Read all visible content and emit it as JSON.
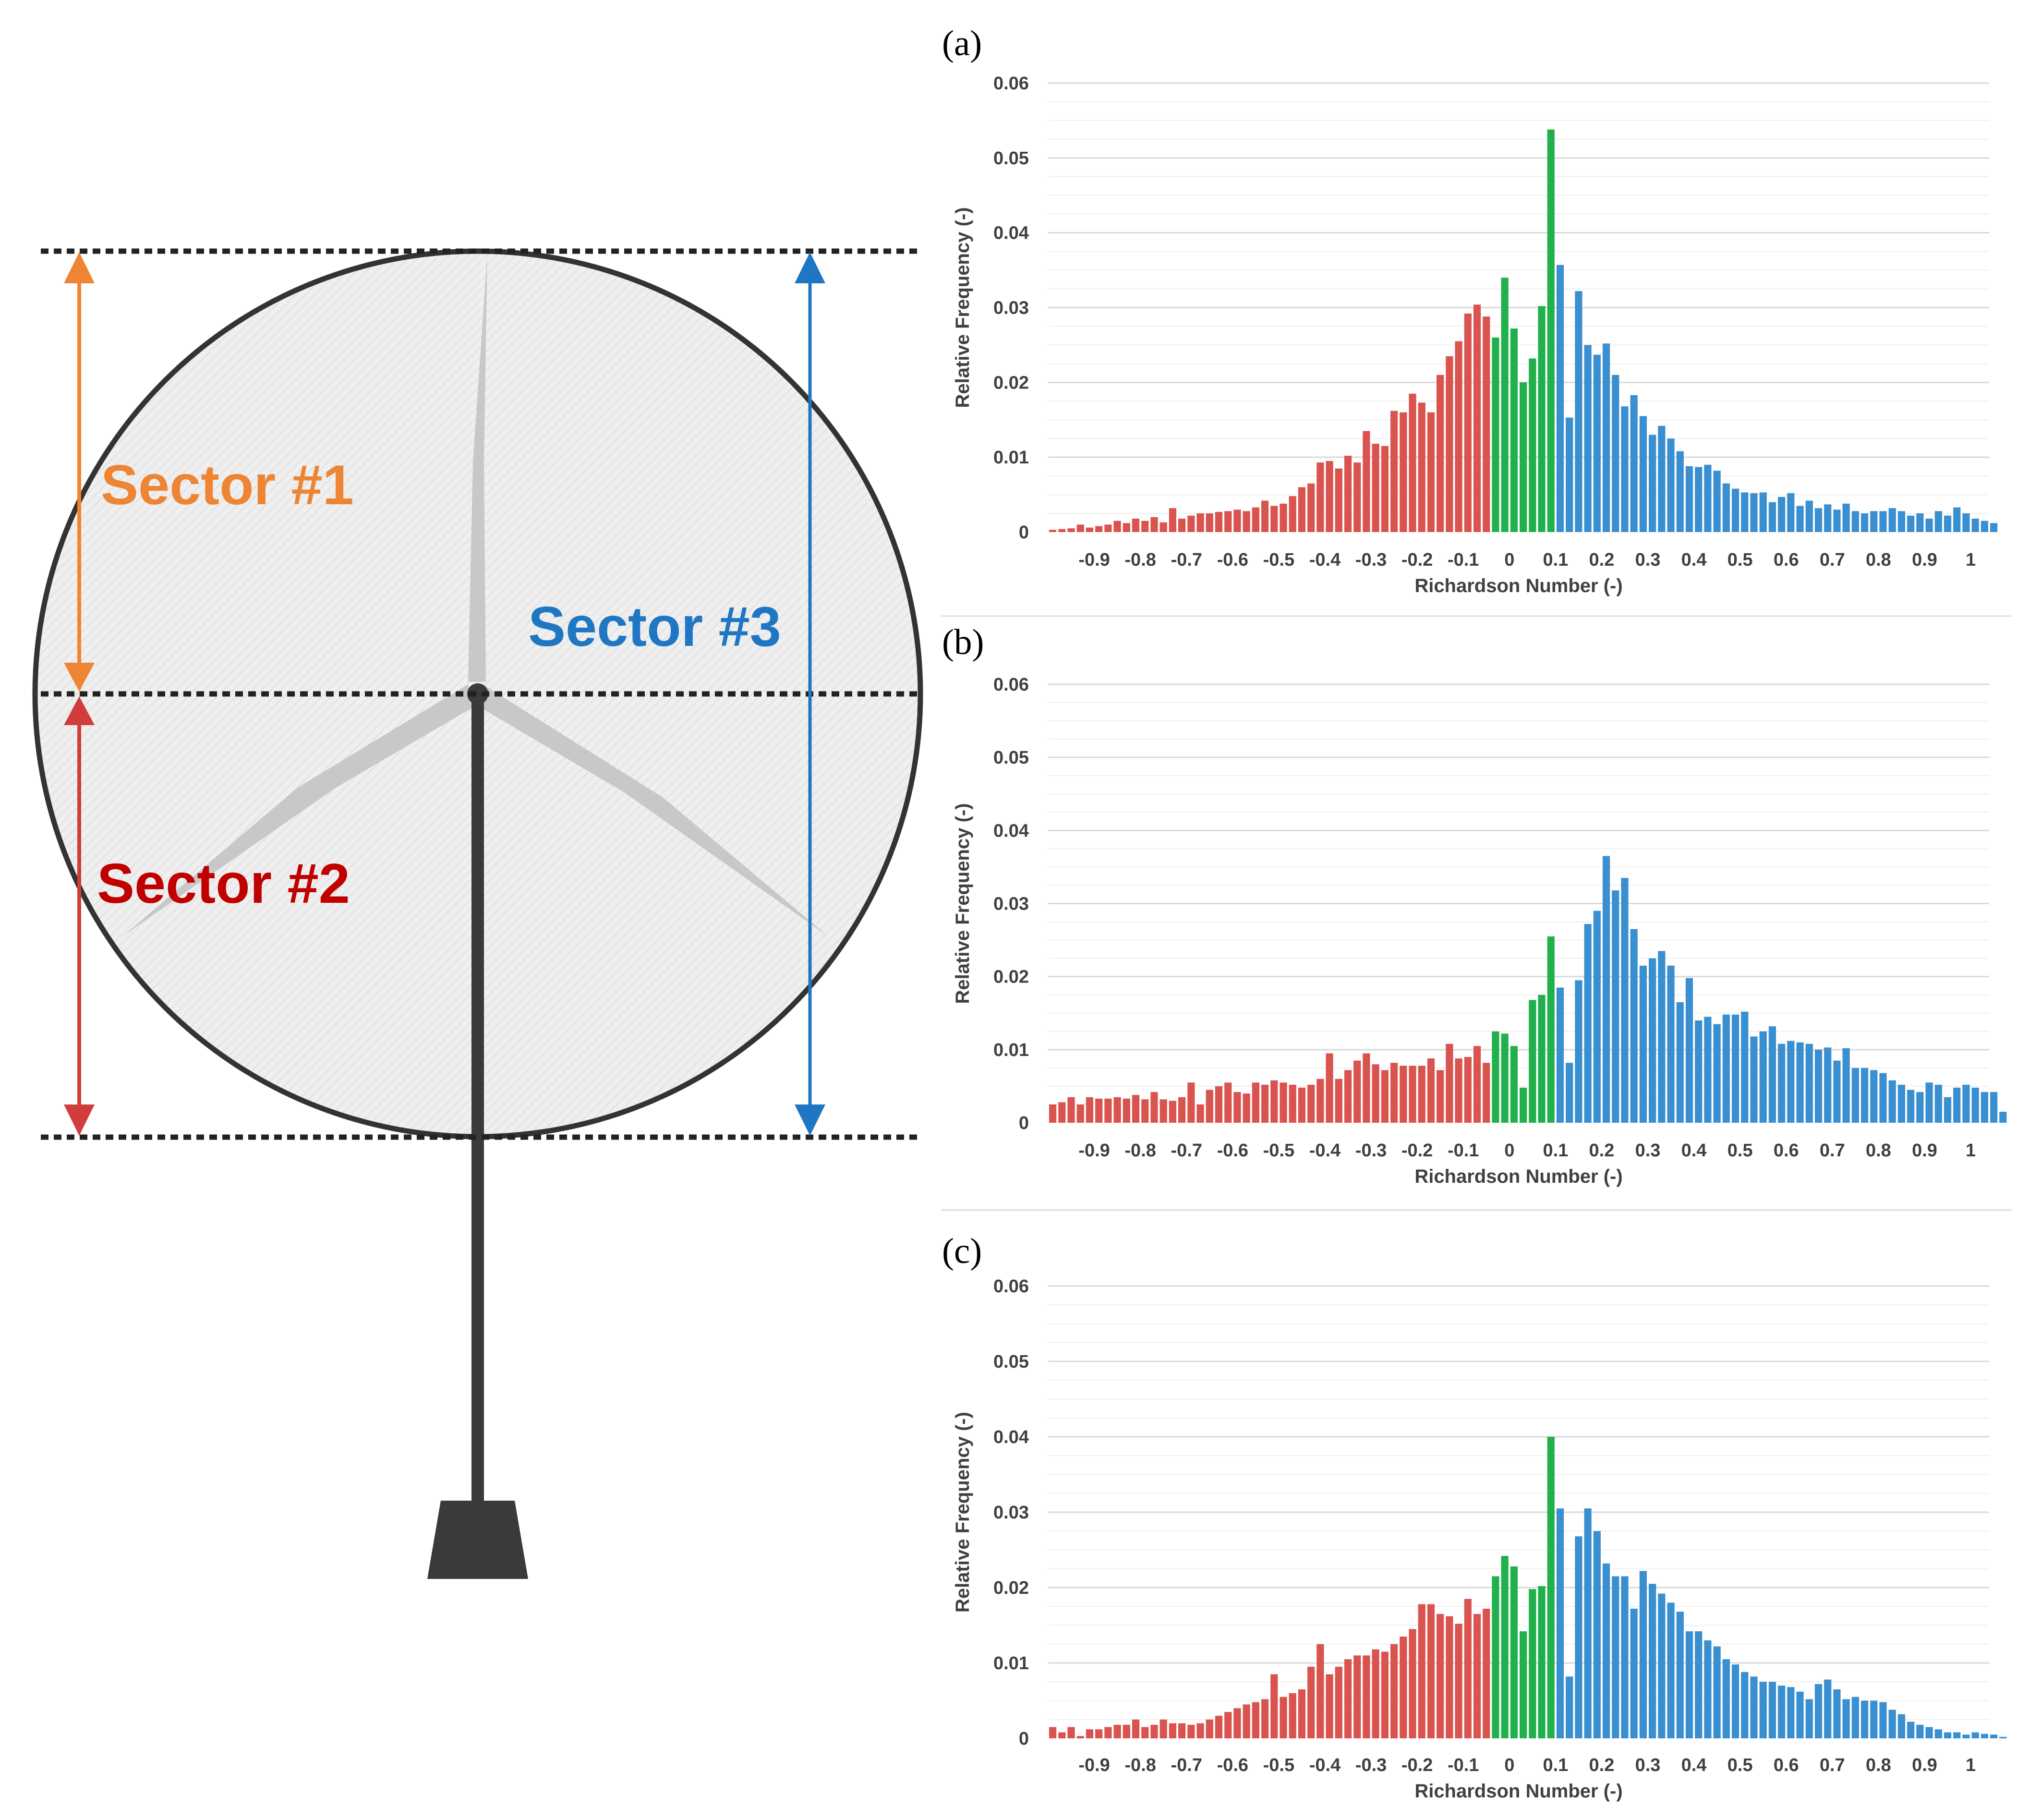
{
  "diagram": {
    "labels": [
      {
        "text": "Sector #1",
        "color": "#ED8534"
      },
      {
        "text": "Sector #2",
        "color": "#C00000"
      },
      {
        "text": "Sector #3",
        "color": "#1F77C4"
      }
    ],
    "colors": {
      "rotor_fill": "#EEEEEE",
      "rotor_stroke": "#333333",
      "blade": "#C8C8C8",
      "tower": "#3A3A3A",
      "dotted_line": "#222222",
      "arrow_sector1": "#ED8534",
      "arrow_sector2": "#D13C3C",
      "arrow_sector3": "#1F77C4"
    }
  },
  "chart_data": [
    {
      "type": "bar",
      "panel_label": "(a)",
      "xlabel": "Richardson Number (-)",
      "ylabel": "Relative Frequency (-)",
      "ylim": [
        0,
        0.06
      ],
      "yticks": [
        "0",
        "0.01",
        "0.02",
        "0.03",
        "0.04",
        "0.05",
        "0.06"
      ],
      "xticks": [
        "-0.9",
        "-0.8",
        "-0.7",
        "-0.6",
        "-0.5",
        "-0.4",
        "-0.3",
        "-0.2",
        "-0.1",
        "0",
        "0.1",
        "0.2",
        "0.3",
        "0.4",
        "0.5",
        "0.6",
        "0.7",
        "0.8",
        "0.9",
        "1"
      ],
      "grid": "horizontal",
      "bin_width": 0.02,
      "x_start": -0.99,
      "series": [
        {
          "color": "#D9534F",
          "values": [
            0.0003,
            0.0004,
            0.0005,
            0.001,
            0.0006,
            0.0008,
            0.001,
            0.0015,
            0.0012,
            0.0018,
            0.0015,
            0.002,
            0.0013,
            0.0032,
            0.0018,
            0.0022,
            0.0025,
            0.0025,
            0.0027,
            0.0028,
            0.003,
            0.0028,
            0.0033,
            0.0042,
            0.0035,
            0.0038,
            0.0048,
            0.006,
            0.0065,
            0.0093,
            0.0095,
            0.0085,
            0.0102,
            0.0093,
            0.0135,
            0.0118,
            0.0115,
            0.0162,
            0.016,
            0.0185,
            0.0173,
            0.016,
            0.021,
            0.0235,
            0.0255,
            0.0292,
            0.0304,
            0.0288
          ]
        },
        {
          "color": "#21B04B",
          "values": [
            0.026,
            0.034,
            0.0272,
            0.02,
            0.0232,
            0.0302,
            0.0538
          ]
        },
        {
          "color": "#3A8FD0",
          "values": [
            0.0357,
            0.0153,
            0.0322,
            0.025,
            0.0237,
            0.0252,
            0.021,
            0.0168,
            0.0183,
            0.0155,
            0.013,
            0.0142,
            0.0125,
            0.0108,
            0.0088,
            0.0087,
            0.009,
            0.0082,
            0.0065,
            0.0058,
            0.0053,
            0.0052,
            0.0053,
            0.004,
            0.0047,
            0.0052,
            0.0035,
            0.0042,
            0.0032,
            0.0037,
            0.003,
            0.0038,
            0.0028,
            0.0025,
            0.0028,
            0.0028,
            0.0032,
            0.0028,
            0.0022,
            0.0025,
            0.0018,
            0.0028,
            0.0022,
            0.0033,
            0.0025,
            0.0018,
            0.0015,
            0.0012
          ]
        }
      ]
    },
    {
      "type": "bar",
      "panel_label": "(b)",
      "xlabel": "Richardson Number (-)",
      "ylabel": "Relative Frequency (-)",
      "ylim": [
        0,
        0.06
      ],
      "yticks": [
        "0",
        "0.01",
        "0.02",
        "0.03",
        "0.04",
        "0.05",
        "0.06"
      ],
      "xticks": [
        "-0.9",
        "-0.8",
        "-0.7",
        "-0.6",
        "-0.5",
        "-0.4",
        "-0.3",
        "-0.2",
        "-0.1",
        "0",
        "0.1",
        "0.2",
        "0.3",
        "0.4",
        "0.5",
        "0.6",
        "0.7",
        "0.8",
        "0.9",
        "1"
      ],
      "grid": "horizontal",
      "bin_width": 0.02,
      "x_start": -0.99,
      "series": [
        {
          "color": "#D9534F",
          "values": [
            0.0025,
            0.0028,
            0.0035,
            0.0025,
            0.0035,
            0.0033,
            0.0033,
            0.0035,
            0.0033,
            0.0038,
            0.0032,
            0.0042,
            0.0032,
            0.003,
            0.0035,
            0.0055,
            0.0025,
            0.0045,
            0.005,
            0.0055,
            0.0042,
            0.004,
            0.0055,
            0.0052,
            0.0058,
            0.0055,
            0.0052,
            0.0048,
            0.0052,
            0.006,
            0.0095,
            0.006,
            0.0072,
            0.0085,
            0.0095,
            0.008,
            0.0072,
            0.0082,
            0.0078,
            0.0078,
            0.0078,
            0.0088,
            0.0072,
            0.0108,
            0.0088,
            0.009,
            0.0105,
            0.0082
          ]
        },
        {
          "color": "#21B04B",
          "values": [
            0.0125,
            0.0122,
            0.0105,
            0.0048,
            0.0168,
            0.0175,
            0.0255
          ]
        },
        {
          "color": "#3A8FD0",
          "values": [
            0.0185,
            0.0082,
            0.0195,
            0.0272,
            0.029,
            0.0365,
            0.0318,
            0.0335,
            0.0265,
            0.0215,
            0.0225,
            0.0235,
            0.0215,
            0.0165,
            0.0198,
            0.014,
            0.0145,
            0.0135,
            0.0148,
            0.0148,
            0.0152,
            0.0118,
            0.0125,
            0.0132,
            0.0108,
            0.0112,
            0.011,
            0.0108,
            0.01,
            0.0103,
            0.0085,
            0.0102,
            0.0075,
            0.0075,
            0.0072,
            0.0068,
            0.0058,
            0.0052,
            0.0045,
            0.0042,
            0.0055,
            0.0052,
            0.0035,
            0.0048,
            0.0052,
            0.0048,
            0.0042,
            0.0042,
            0.0015
          ]
        }
      ]
    },
    {
      "type": "bar",
      "panel_label": "(c)",
      "xlabel": "Richardson Number (-)",
      "ylabel": "Relative Frequency (-)",
      "ylim": [
        0,
        0.06
      ],
      "yticks": [
        "0",
        "0.01",
        "0.02",
        "0.03",
        "0.04",
        "0.05",
        "0.06"
      ],
      "xticks": [
        "-0.9",
        "-0.8",
        "-0.7",
        "-0.6",
        "-0.5",
        "-0.4",
        "-0.3",
        "-0.2",
        "-0.1",
        "0",
        "0.1",
        "0.2",
        "0.3",
        "0.4",
        "0.5",
        "0.6",
        "0.7",
        "0.8",
        "0.9",
        "1"
      ],
      "grid": "horizontal",
      "bin_width": 0.02,
      "x_start": -0.99,
      "series": [
        {
          "color": "#D9534F",
          "values": [
            0.0015,
            0.0008,
            0.0015,
            0.0003,
            0.0012,
            0.0012,
            0.0015,
            0.0018,
            0.0018,
            0.0025,
            0.0015,
            0.0018,
            0.0025,
            0.002,
            0.002,
            0.0018,
            0.002,
            0.0025,
            0.003,
            0.0035,
            0.004,
            0.0045,
            0.0048,
            0.0052,
            0.0085,
            0.0055,
            0.006,
            0.0065,
            0.0095,
            0.0125,
            0.0085,
            0.0095,
            0.0105,
            0.011,
            0.011,
            0.0118,
            0.0115,
            0.0125,
            0.0135,
            0.0145,
            0.0178,
            0.0178,
            0.0165,
            0.0162,
            0.0152,
            0.0185,
            0.0165,
            0.0172
          ]
        },
        {
          "color": "#21B04B",
          "values": [
            0.0215,
            0.0242,
            0.0228,
            0.0142,
            0.0198,
            0.0202,
            0.04
          ]
        },
        {
          "color": "#3A8FD0",
          "values": [
            0.0305,
            0.0082,
            0.0268,
            0.0305,
            0.0275,
            0.0232,
            0.0215,
            0.0215,
            0.0172,
            0.0222,
            0.0205,
            0.0192,
            0.018,
            0.0168,
            0.0142,
            0.0142,
            0.013,
            0.0122,
            0.0105,
            0.0098,
            0.0088,
            0.0082,
            0.0075,
            0.0075,
            0.007,
            0.0068,
            0.0062,
            0.0052,
            0.0072,
            0.0078,
            0.0065,
            0.0052,
            0.0055,
            0.005,
            0.005,
            0.0048,
            0.0038,
            0.0032,
            0.0022,
            0.0018,
            0.0015,
            0.0012,
            0.0008,
            0.0008,
            0.0005,
            0.0008,
            0.0006,
            0.0005,
            0.0002
          ]
        }
      ]
    }
  ]
}
